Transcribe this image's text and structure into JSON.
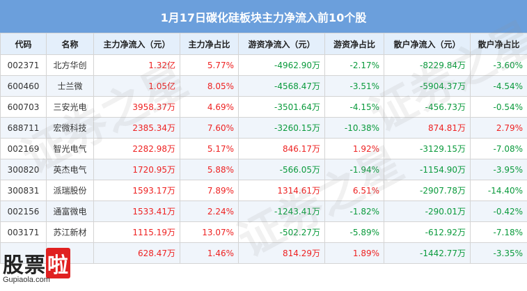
{
  "title": "1月17日碳化硅板块主力净流入前10个股",
  "colors": {
    "header_bg": "#6b9fdc",
    "positive": "#e22222",
    "negative": "#0a9a3c"
  },
  "columns": [
    "代码",
    "名称",
    "主力净流入（元）",
    "主力净占比",
    "游资净流入（元）",
    "游资净占比",
    "散户净流入（元）",
    "散户净占比"
  ],
  "rows": [
    {
      "code": "002371",
      "name": "北方华创",
      "main_in": "1.32亿",
      "main_pct": "5.77%",
      "hot_in": "-4962.90万",
      "hot_pct": "-2.17%",
      "retail_in": "-8229.84万",
      "retail_pct": "-3.60%"
    },
    {
      "code": "600460",
      "name": "士兰微",
      "main_in": "1.05亿",
      "main_pct": "8.05%",
      "hot_in": "-4568.47万",
      "hot_pct": "-3.51%",
      "retail_in": "-5904.37万",
      "retail_pct": "-4.54%"
    },
    {
      "code": "600703",
      "name": "三安光电",
      "main_in": "3958.37万",
      "main_pct": "4.69%",
      "hot_in": "-3501.64万",
      "hot_pct": "-4.15%",
      "retail_in": "-456.73万",
      "retail_pct": "-0.54%"
    },
    {
      "code": "688711",
      "name": "宏微科技",
      "main_in": "2385.34万",
      "main_pct": "7.60%",
      "hot_in": "-3260.15万",
      "hot_pct": "-10.38%",
      "retail_in": "874.81万",
      "retail_pct": "2.79%"
    },
    {
      "code": "002169",
      "name": "智光电气",
      "main_in": "2282.98万",
      "main_pct": "5.17%",
      "hot_in": "846.17万",
      "hot_pct": "1.92%",
      "retail_in": "-3129.15万",
      "retail_pct": "-7.08%"
    },
    {
      "code": "300820",
      "name": "英杰电气",
      "main_in": "1720.95万",
      "main_pct": "5.88%",
      "hot_in": "-566.05万",
      "hot_pct": "-1.94%",
      "retail_in": "-1154.90万",
      "retail_pct": "-3.95%"
    },
    {
      "code": "300831",
      "name": "派瑞股份",
      "main_in": "1593.17万",
      "main_pct": "7.89%",
      "hot_in": "1314.61万",
      "hot_pct": "6.51%",
      "retail_in": "-2907.78万",
      "retail_pct": "-14.40%"
    },
    {
      "code": "002156",
      "name": "通富微电",
      "main_in": "1533.41万",
      "main_pct": "2.24%",
      "hot_in": "-1243.41万",
      "hot_pct": "-1.82%",
      "retail_in": "-290.01万",
      "retail_pct": "-0.42%"
    },
    {
      "code": "003171",
      "name": "苏江新材",
      "main_in": "1115.19万",
      "main_pct": "13.07%",
      "hot_in": "-502.27万",
      "hot_pct": "-5.89%",
      "retail_in": "-612.92万",
      "retail_pct": "-7.18%"
    },
    {
      "code": "",
      "name": "",
      "main_in": "628.47万",
      "main_pct": "1.46%",
      "hot_in": "814.29万",
      "hot_pct": "1.89%",
      "retail_in": "-1442.77万",
      "retail_pct": "-3.35%"
    }
  ],
  "watermark": "证券之星",
  "logo": {
    "text_a": "股票",
    "text_b": "啦",
    "sub": "Gupiaola.com"
  }
}
